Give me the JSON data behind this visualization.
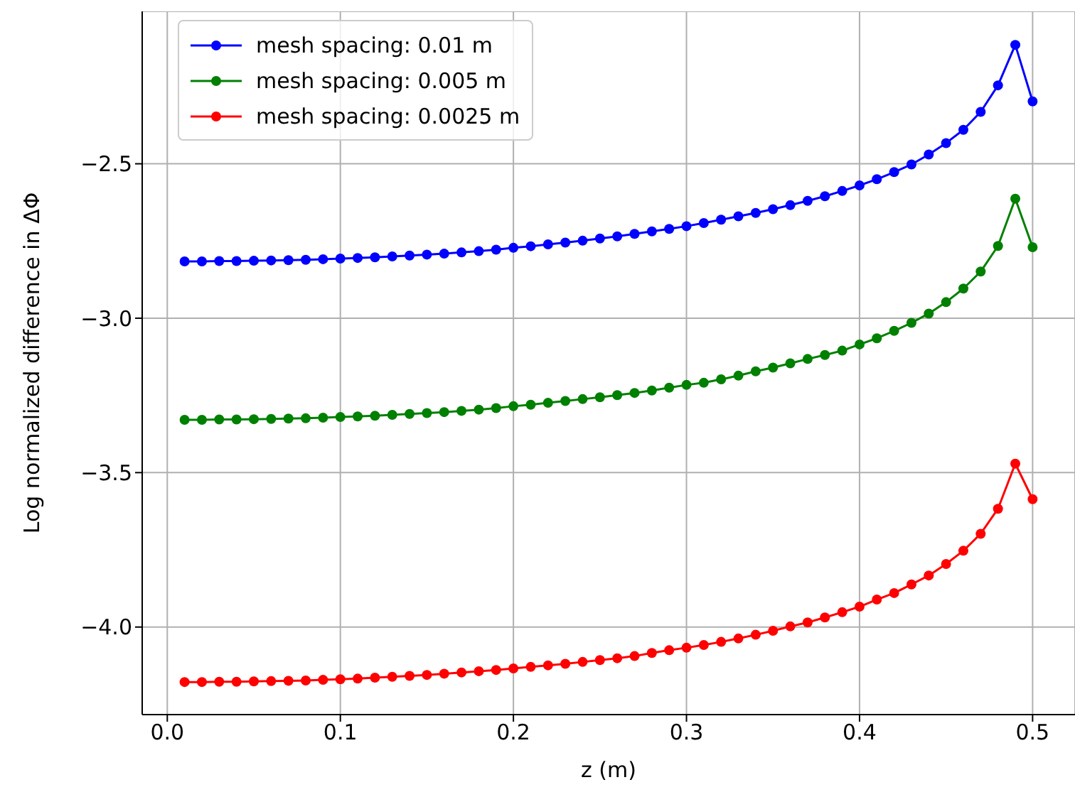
{
  "chart_data": {
    "type": "line",
    "xlabel": "z (m)",
    "ylabel": "Log normalized difference in ΔΦ",
    "x": [
      0.01,
      0.02,
      0.03,
      0.04,
      0.05,
      0.06,
      0.07,
      0.08,
      0.09,
      0.1,
      0.11,
      0.12,
      0.13,
      0.14,
      0.15,
      0.16,
      0.17,
      0.18,
      0.19,
      0.2,
      0.21,
      0.22,
      0.23,
      0.24,
      0.25,
      0.26,
      0.27,
      0.28,
      0.29,
      0.3,
      0.31,
      0.32,
      0.33,
      0.34,
      0.35,
      0.36,
      0.37,
      0.38,
      0.39,
      0.4,
      0.41,
      0.42,
      0.43,
      0.44,
      0.45,
      0.46,
      0.47,
      0.48,
      0.49,
      0.5
    ],
    "series": [
      {
        "name": "mesh spacing: 0.01 m",
        "color": "#0000ff",
        "values": [
          -2.816,
          -2.816,
          -2.815,
          -2.815,
          -2.814,
          -2.813,
          -2.812,
          -2.811,
          -2.809,
          -2.807,
          -2.805,
          -2.803,
          -2.8,
          -2.797,
          -2.794,
          -2.791,
          -2.787,
          -2.783,
          -2.778,
          -2.772,
          -2.767,
          -2.761,
          -2.755,
          -2.749,
          -2.742,
          -2.735,
          -2.727,
          -2.719,
          -2.711,
          -2.702,
          -2.692,
          -2.681,
          -2.67,
          -2.659,
          -2.647,
          -2.634,
          -2.62,
          -2.605,
          -2.588,
          -2.57,
          -2.55,
          -2.527,
          -2.502,
          -2.47,
          -2.433,
          -2.39,
          -2.332,
          -2.246,
          -2.115,
          -2.298
        ]
      },
      {
        "name": "mesh spacing: 0.005 m",
        "color": "#008000",
        "values": [
          -3.329,
          -3.329,
          -3.328,
          -3.328,
          -3.327,
          -3.326,
          -3.325,
          -3.324,
          -3.322,
          -3.32,
          -3.318,
          -3.316,
          -3.313,
          -3.31,
          -3.307,
          -3.304,
          -3.3,
          -3.296,
          -3.291,
          -3.285,
          -3.28,
          -3.274,
          -3.268,
          -3.262,
          -3.256,
          -3.249,
          -3.242,
          -3.234,
          -3.225,
          -3.216,
          -3.209,
          -3.198,
          -3.186,
          -3.172,
          -3.16,
          -3.146,
          -3.132,
          -3.119,
          -3.105,
          -3.085,
          -3.065,
          -3.041,
          -3.015,
          -2.985,
          -2.948,
          -2.904,
          -2.849,
          -2.766,
          -2.613,
          -2.77
        ]
      },
      {
        "name": "mesh spacing: 0.0025 m",
        "color": "#ff0000",
        "values": [
          -4.178,
          -4.178,
          -4.177,
          -4.177,
          -4.176,
          -4.175,
          -4.174,
          -4.173,
          -4.171,
          -4.169,
          -4.167,
          -4.164,
          -4.161,
          -4.158,
          -4.155,
          -4.151,
          -4.147,
          -4.143,
          -4.139,
          -4.134,
          -4.129,
          -4.124,
          -4.119,
          -4.113,
          -4.107,
          -4.101,
          -4.094,
          -4.084,
          -4.075,
          -4.067,
          -4.058,
          -4.048,
          -4.037,
          -4.025,
          -4.012,
          -3.998,
          -3.985,
          -3.969,
          -3.952,
          -3.934,
          -3.911,
          -3.89,
          -3.862,
          -3.833,
          -3.796,
          -3.753,
          -3.698,
          -3.617,
          -3.471,
          -3.586
        ]
      }
    ],
    "xlim": [
      -0.0145,
      0.5245
    ],
    "ylim": [
      -4.2835,
      -2.0065
    ],
    "xticks": [
      {
        "value": 0,
        "label": "0.0"
      },
      0.1,
      0.2,
      0.3,
      0.4,
      0.5
    ],
    "yticks": [
      {
        "value": -4,
        "label": "−4.0"
      },
      {
        "value": -3.5,
        "label": "−3.5"
      },
      {
        "value": -3,
        "label": "−3.0"
      },
      {
        "value": -2.5,
        "label": "−2.5"
      }
    ],
    "grid": true,
    "legend": "top left",
    "marker": "circle",
    "line_style": "solid"
  }
}
